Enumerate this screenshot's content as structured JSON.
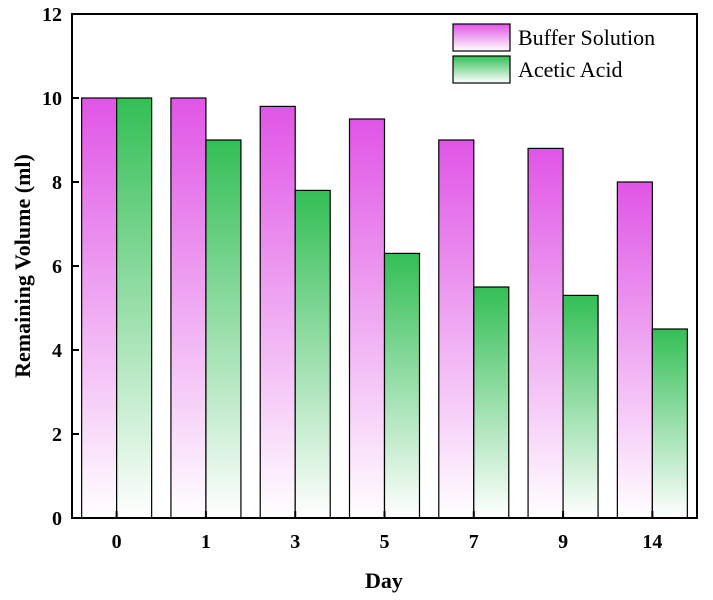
{
  "chart_data": {
    "type": "bar",
    "categories": [
      "0",
      "1",
      "3",
      "5",
      "7",
      "9",
      "14"
    ],
    "series": [
      {
        "name": "Buffer Solution",
        "values": [
          10,
          10,
          9.8,
          9.5,
          9,
          8.8,
          8
        ],
        "color": "#e055e6"
      },
      {
        "name": "Acetic Acid",
        "values": [
          10,
          9,
          7.8,
          6.3,
          5.5,
          5.3,
          4.5
        ],
        "color": "#33bf55"
      }
    ],
    "xlabel": "Day",
    "ylabel": "Remaining Volume (ml)",
    "ylim": [
      0,
      12
    ],
    "yticks": [
      0,
      2,
      4,
      6,
      8,
      10,
      12
    ],
    "grid": false,
    "legend_position": "top-right"
  }
}
